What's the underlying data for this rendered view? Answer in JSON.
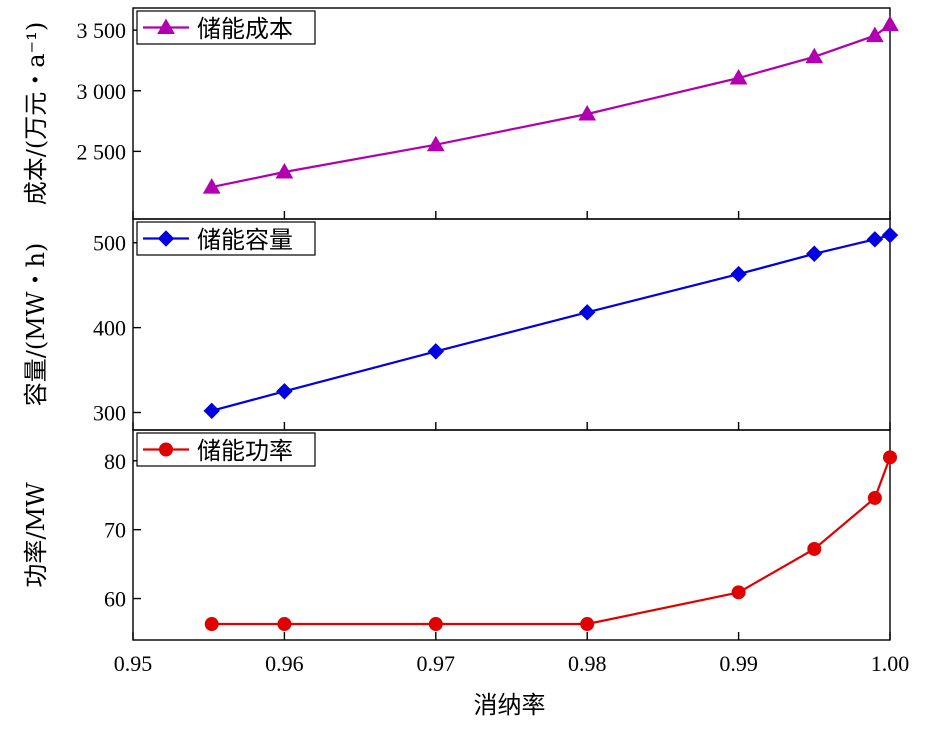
{
  "chart_data": {
    "type": "line",
    "x": [
      0.9552,
      0.96,
      0.97,
      0.98,
      0.99,
      0.995,
      0.999,
      1.0
    ],
    "xlabel": "消纳率",
    "xticks": [
      "0.95",
      "0.96",
      "0.97",
      "0.98",
      "0.99",
      "1.00"
    ],
    "xlim": [
      0.95,
      1.0
    ],
    "panels": [
      {
        "legend": "储能成本",
        "ylabel": "成本/(万元・a⁻¹)",
        "ylim": [
          2000,
          3600
        ],
        "yticks": [
          "2 500",
          "3 000",
          "3 500"
        ],
        "color": "#b000b0",
        "marker": "triangle",
        "values": [
          2205,
          2330,
          2555,
          2808,
          3105,
          3280,
          3455,
          3545
        ]
      },
      {
        "legend": "储能容量",
        "ylabel": "容量/(MW・h)",
        "ylim": [
          290,
          515
        ],
        "yticks": [
          "300",
          "400",
          "500"
        ],
        "color": "#0000e0",
        "marker": "diamond",
        "values": [
          302,
          325,
          372,
          418,
          463,
          487,
          504,
          509
        ]
      },
      {
        "legend": "储能功率",
        "ylabel": "功率/MW",
        "ylim": [
          55,
          82
        ],
        "yticks": [
          "60",
          "70",
          "80"
        ],
        "color": "#e00000",
        "marker": "circle",
        "values": [
          56.3,
          56.3,
          56.3,
          56.3,
          60.9,
          67.2,
          74.6,
          80.5
        ]
      }
    ]
  }
}
